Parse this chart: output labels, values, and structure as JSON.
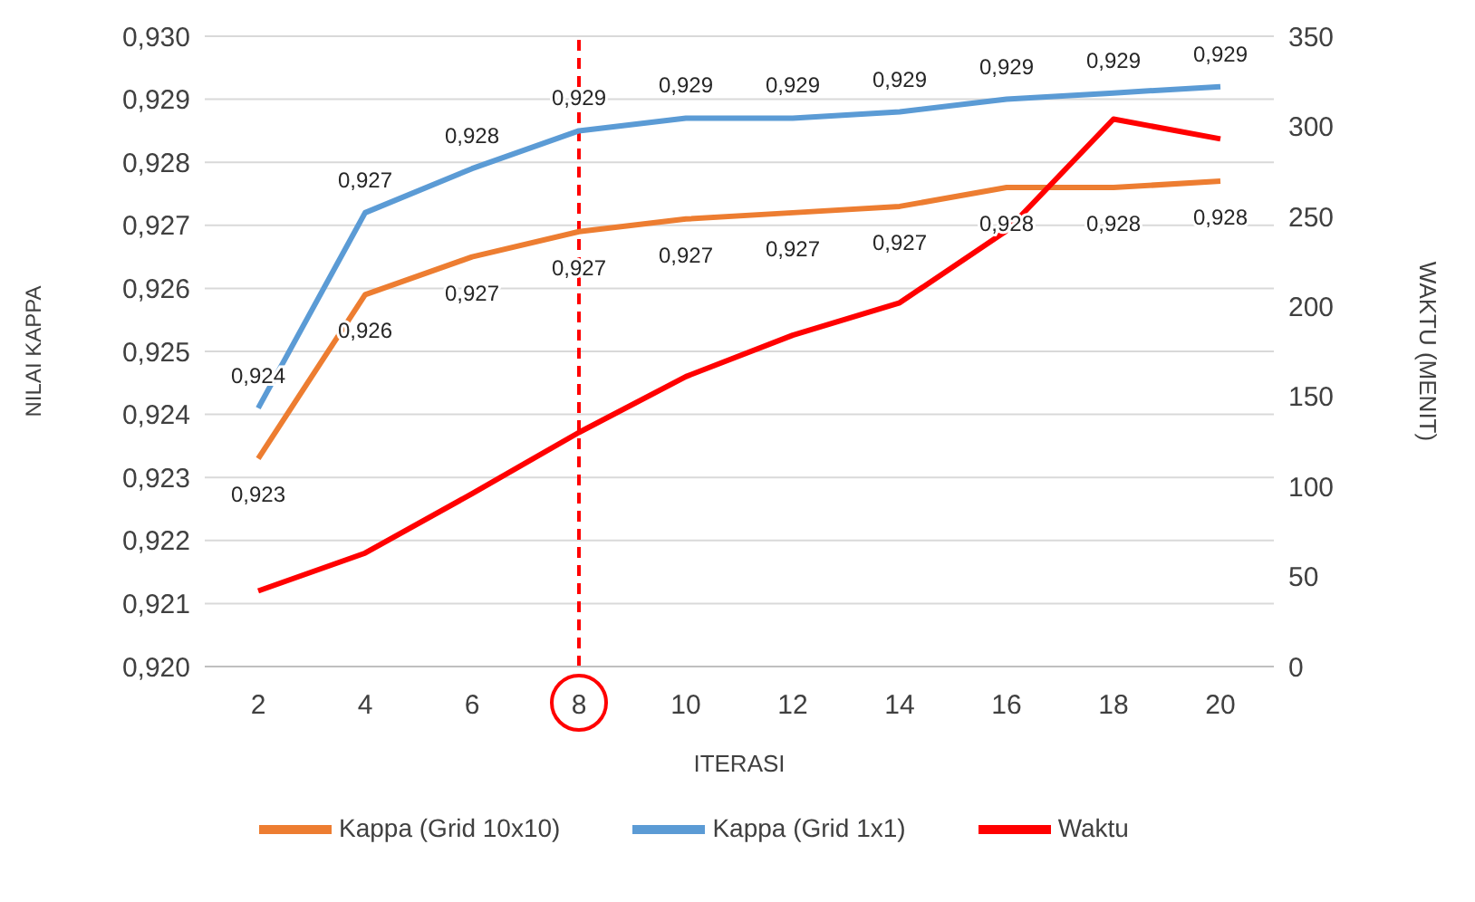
{
  "chart_data": {
    "type": "line",
    "xlabel": "ITERASI",
    "ylabel": "NILAI KAPPA",
    "y2label": "WAKTU (MENIT)",
    "x": [
      2,
      4,
      6,
      8,
      10,
      12,
      14,
      16,
      18,
      20
    ],
    "series": [
      {
        "name": "Kappa (Grid 1x1)",
        "color": "#5b9bd5",
        "values": [
          0.9241,
          0.9272,
          0.9279,
          0.9285,
          0.9287,
          0.9287,
          0.9288,
          0.929,
          0.9291,
          0.9292
        ],
        "value_labels": [
          "0,924",
          "0,927",
          "0,928",
          "0,929",
          "0,929",
          "0,929",
          "0,929",
          "0,929",
          "0,929",
          "0,929"
        ]
      },
      {
        "name": "Kappa (Grid 10x10)",
        "color": "#ed7d31",
        "values": [
          0.9233,
          0.9259,
          0.9265,
          0.9269,
          0.9271,
          0.9272,
          0.9273,
          0.9276,
          0.9276,
          0.9277
        ],
        "value_labels": [
          "0,923",
          "0,926",
          "0,927",
          "0,927",
          "0,927",
          "0,927",
          "0,927",
          "0,928",
          "0,928",
          "0,928"
        ]
      },
      {
        "name": "Waktu",
        "color": "#ff0000",
        "axis": "y2",
        "values": [
          42,
          63,
          96,
          130,
          161,
          184,
          202,
          242,
          304,
          293
        ]
      }
    ],
    "xlim": [
      1,
      21
    ],
    "xticks": [
      2,
      4,
      6,
      8,
      10,
      12,
      14,
      16,
      18,
      20
    ],
    "ylim": [
      0.92,
      0.93
    ],
    "yticks": [
      {
        "value": 0.92,
        "label": "0,920"
      },
      {
        "value": 0.921,
        "label": "0,921"
      },
      {
        "value": 0.922,
        "label": "0,922"
      },
      {
        "value": 0.923,
        "label": "0,923"
      },
      {
        "value": 0.924,
        "label": "0,924"
      },
      {
        "value": 0.925,
        "label": "0,925"
      },
      {
        "value": 0.926,
        "label": "0,926"
      },
      {
        "value": 0.927,
        "label": "0,927"
      },
      {
        "value": 0.928,
        "label": "0,928"
      },
      {
        "value": 0.929,
        "label": "0,929"
      },
      {
        "value": 0.93,
        "label": "0,930"
      }
    ],
    "y2lim": [
      0,
      350
    ],
    "y2ticks": [
      0,
      50,
      100,
      150,
      200,
      250,
      300,
      350
    ],
    "ref_lines": [
      {
        "axis": "x",
        "value": 8,
        "color": "#ff0000",
        "line_style": "dashed"
      }
    ],
    "grid": "y",
    "legend": "bottom",
    "marker": "none",
    "line_style": "solid"
  }
}
